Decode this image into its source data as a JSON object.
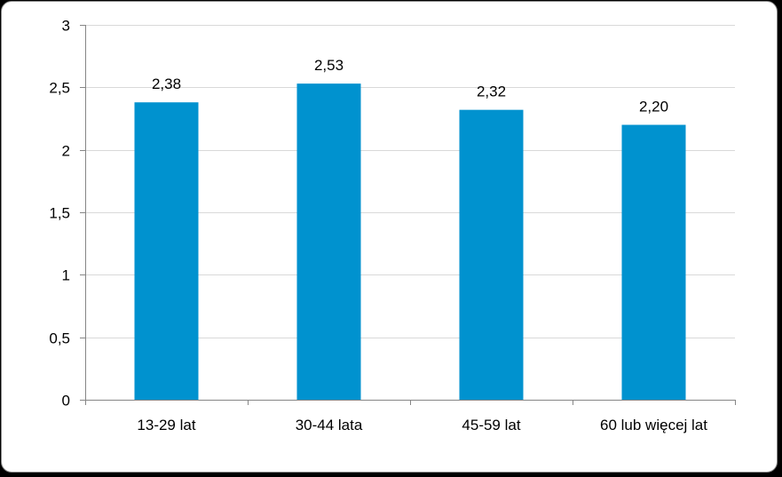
{
  "chart_data": {
    "type": "bar",
    "categories": [
      "13-29 lat",
      "30-44 lata",
      "45-59 lat",
      "60 lub więcej lat"
    ],
    "values": [
      2.38,
      2.53,
      2.32,
      2.2
    ],
    "data_labels": [
      "2,38",
      "2,53",
      "2,32",
      "2,20"
    ],
    "y_ticks": [
      0,
      0.5,
      1,
      1.5,
      2,
      2.5,
      3
    ],
    "y_tick_labels": [
      "0",
      "0,5",
      "1",
      "1,5",
      "2",
      "2,5",
      "3"
    ],
    "ylim": [
      0,
      3
    ],
    "grid": true,
    "legend": "none",
    "bar_color": "#0092CF",
    "grid_color": "#d9d9d9",
    "axis_color": "#868686"
  }
}
